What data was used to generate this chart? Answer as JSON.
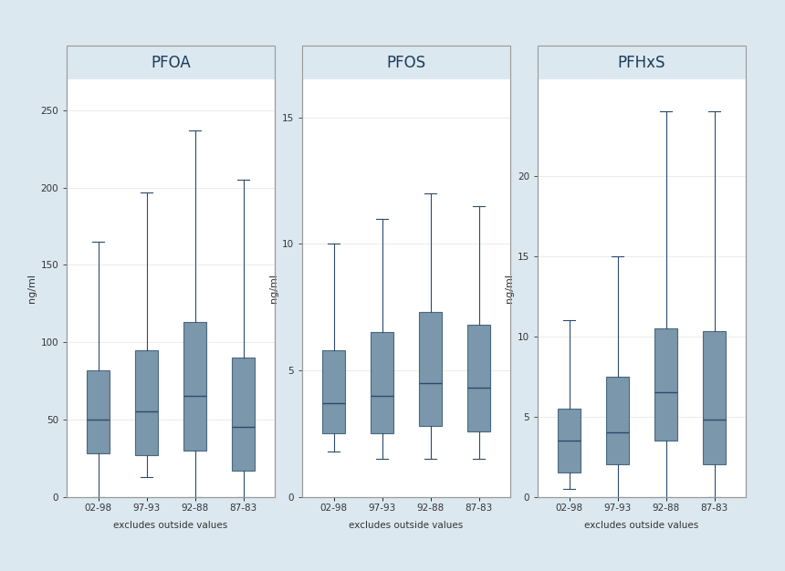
{
  "panels": [
    {
      "title": "PFOA",
      "ylabel": "ng/ml",
      "ylim": [
        0,
        270
      ],
      "yticks": [
        0,
        50,
        100,
        150,
        200,
        250
      ],
      "categories": [
        "02-98",
        "97-93",
        "92-88",
        "87-83"
      ],
      "boxes": [
        {
          "whislo": 0,
          "q1": 28,
          "med": 50,
          "q3": 82,
          "whishi": 165
        },
        {
          "whislo": 13,
          "q1": 27,
          "med": 55,
          "q3": 95,
          "whishi": 197
        },
        {
          "whislo": 0,
          "q1": 30,
          "med": 65,
          "q3": 113,
          "whishi": 237
        },
        {
          "whislo": 0,
          "q1": 17,
          "med": 45,
          "q3": 90,
          "whishi": 205
        }
      ]
    },
    {
      "title": "PFOS",
      "ylabel": "ng/ml",
      "ylim": [
        0,
        16.5
      ],
      "yticks": [
        0,
        5,
        10,
        15
      ],
      "categories": [
        "02-98",
        "97-93",
        "92-88",
        "87-83"
      ],
      "boxes": [
        {
          "whislo": 1.8,
          "q1": 2.5,
          "med": 3.7,
          "q3": 5.8,
          "whishi": 10.0
        },
        {
          "whislo": 1.5,
          "q1": 2.5,
          "med": 4.0,
          "q3": 6.5,
          "whishi": 11.0
        },
        {
          "whislo": 1.5,
          "q1": 2.8,
          "med": 4.5,
          "q3": 7.3,
          "whishi": 12.0
        },
        {
          "whislo": 1.5,
          "q1": 2.6,
          "med": 4.3,
          "q3": 6.8,
          "whishi": 11.5
        }
      ]
    },
    {
      "title": "PFHxS",
      "ylabel": "ng/ml",
      "ylim": [
        0,
        26
      ],
      "yticks": [
        0,
        5,
        10,
        15,
        20
      ],
      "categories": [
        "02-98",
        "97-93",
        "92-88",
        "87-83"
      ],
      "boxes": [
        {
          "whislo": 0.5,
          "q1": 1.5,
          "med": 3.5,
          "q3": 5.5,
          "whishi": 11.0
        },
        {
          "whislo": 0,
          "q1": 2.0,
          "med": 4.0,
          "q3": 7.5,
          "whishi": 15.0
        },
        {
          "whislo": 0,
          "q1": 3.5,
          "med": 6.5,
          "q3": 10.5,
          "whishi": 24.0
        },
        {
          "whislo": 0,
          "q1": 2.0,
          "med": 4.8,
          "q3": 10.3,
          "whishi": 24.0
        }
      ]
    }
  ],
  "box_color": "#7b97ab",
  "box_edge_color": "#4a6880",
  "median_color": "#2c4a6e",
  "whisker_color": "#2c4a6e",
  "cap_color": "#2c4a6e",
  "bg_outer": "#dce8f0",
  "bg_panel": "#ffffff",
  "bg_title": "#c8d8e4",
  "title_color": "#1a3a5c",
  "footer_text": "excludes outside values",
  "grid_color": "#e8e8e8",
  "panel_border_color": "#999999",
  "tick_label_fontsize": 7.5,
  "ylabel_fontsize": 8.0,
  "title_fontsize": 12,
  "footer_fontsize": 7.5
}
